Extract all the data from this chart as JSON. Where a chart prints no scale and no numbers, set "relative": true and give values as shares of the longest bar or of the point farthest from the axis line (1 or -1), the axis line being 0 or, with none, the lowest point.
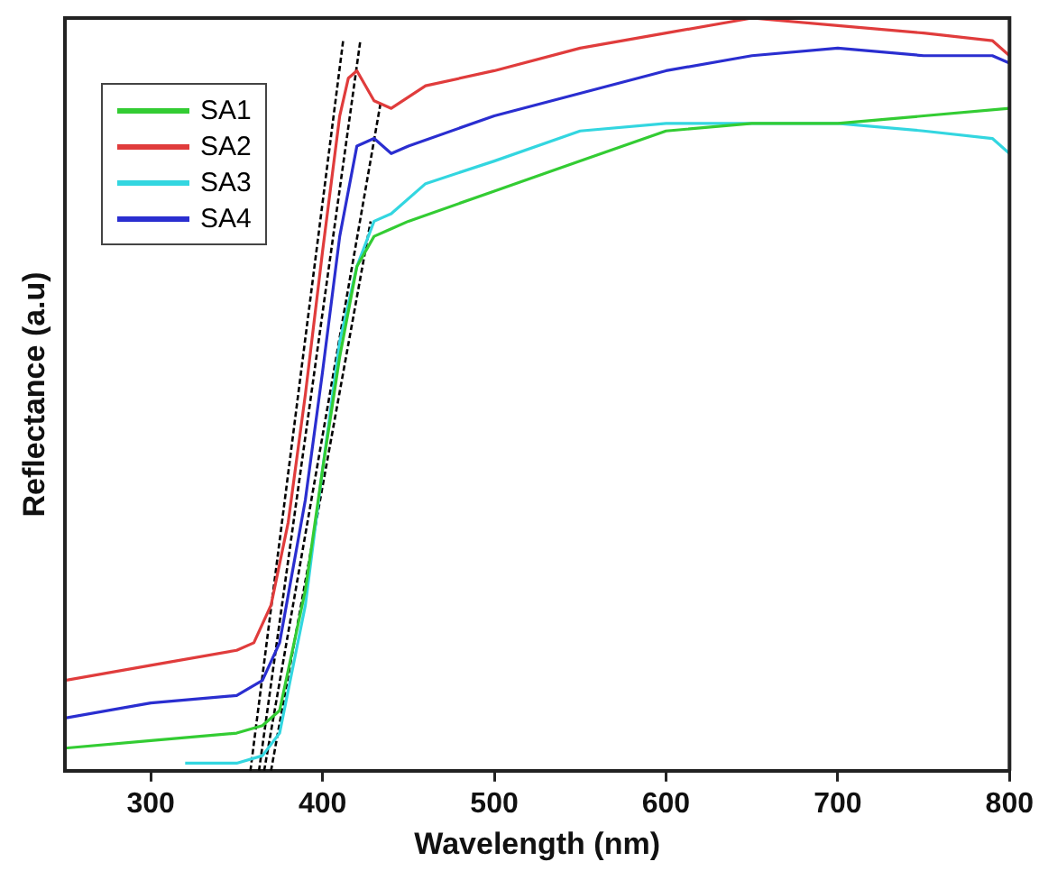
{
  "chart_data": {
    "type": "line",
    "xlabel": "Wavelength (nm)",
    "ylabel": "Reflectance (a.u)",
    "relative": true,
    "xlim": [
      250,
      800
    ],
    "xticks": [
      300,
      400,
      500,
      600,
      700,
      800
    ],
    "grid": false,
    "legend": "top left",
    "marker": "none",
    "line_style": "solid",
    "series": [
      {
        "name": "SA1",
        "color": "#33cc33",
        "x": [
          250,
          300,
          350,
          365,
          375,
          390,
          400,
          410,
          420,
          430,
          440,
          450,
          500,
          550,
          600,
          650,
          700,
          750,
          800
        ],
        "values": [
          0.03,
          0.04,
          0.05,
          0.06,
          0.08,
          0.24,
          0.4,
          0.55,
          0.67,
          0.71,
          0.72,
          0.73,
          0.77,
          0.81,
          0.85,
          0.86,
          0.86,
          0.87,
          0.88
        ]
      },
      {
        "name": "SA2",
        "color": "#e03c3c",
        "x": [
          250,
          300,
          350,
          360,
          370,
          380,
          390,
          400,
          410,
          415,
          420,
          430,
          440,
          460,
          500,
          550,
          600,
          650,
          700,
          750,
          790,
          800
        ],
        "values": [
          0.12,
          0.14,
          0.16,
          0.17,
          0.22,
          0.33,
          0.5,
          0.69,
          0.87,
          0.92,
          0.93,
          0.89,
          0.88,
          0.91,
          0.93,
          0.96,
          0.98,
          1.0,
          0.99,
          0.98,
          0.97,
          0.95
        ]
      },
      {
        "name": "SA3",
        "color": "#33d6e0",
        "x": [
          320,
          350,
          365,
          375,
          390,
          400,
          410,
          420,
          430,
          440,
          460,
          500,
          550,
          600,
          650,
          700,
          750,
          790,
          800
        ],
        "values": [
          0.01,
          0.01,
          0.02,
          0.05,
          0.22,
          0.4,
          0.57,
          0.67,
          0.73,
          0.74,
          0.78,
          0.81,
          0.85,
          0.86,
          0.86,
          0.86,
          0.85,
          0.84,
          0.82
        ]
      },
      {
        "name": "SA4",
        "color": "#2a2ed0",
        "x": [
          250,
          300,
          350,
          365,
          375,
          390,
          400,
          410,
          420,
          430,
          440,
          450,
          500,
          550,
          600,
          650,
          700,
          750,
          790,
          800
        ],
        "values": [
          0.07,
          0.09,
          0.1,
          0.12,
          0.17,
          0.36,
          0.53,
          0.71,
          0.83,
          0.84,
          0.82,
          0.83,
          0.87,
          0.9,
          0.93,
          0.95,
          0.96,
          0.95,
          0.95,
          0.94
        ]
      },
      {
        "type": "line",
        "color": "#000000",
        "line_style": "dashed",
        "x": [
          358,
          412
        ],
        "values": [
          0,
          0.97
        ]
      },
      {
        "type": "line",
        "color": "#000000",
        "line_style": "dashed",
        "x": [
          363,
          422
        ],
        "values": [
          0,
          0.97
        ]
      },
      {
        "type": "line",
        "color": "#000000",
        "line_style": "dashed",
        "x": [
          366,
          434
        ],
        "values": [
          0,
          0.89
        ]
      },
      {
        "type": "line",
        "color": "#000000",
        "line_style": "dashed",
        "x": [
          370,
          428
        ],
        "values": [
          0,
          0.73
        ]
      }
    ]
  }
}
